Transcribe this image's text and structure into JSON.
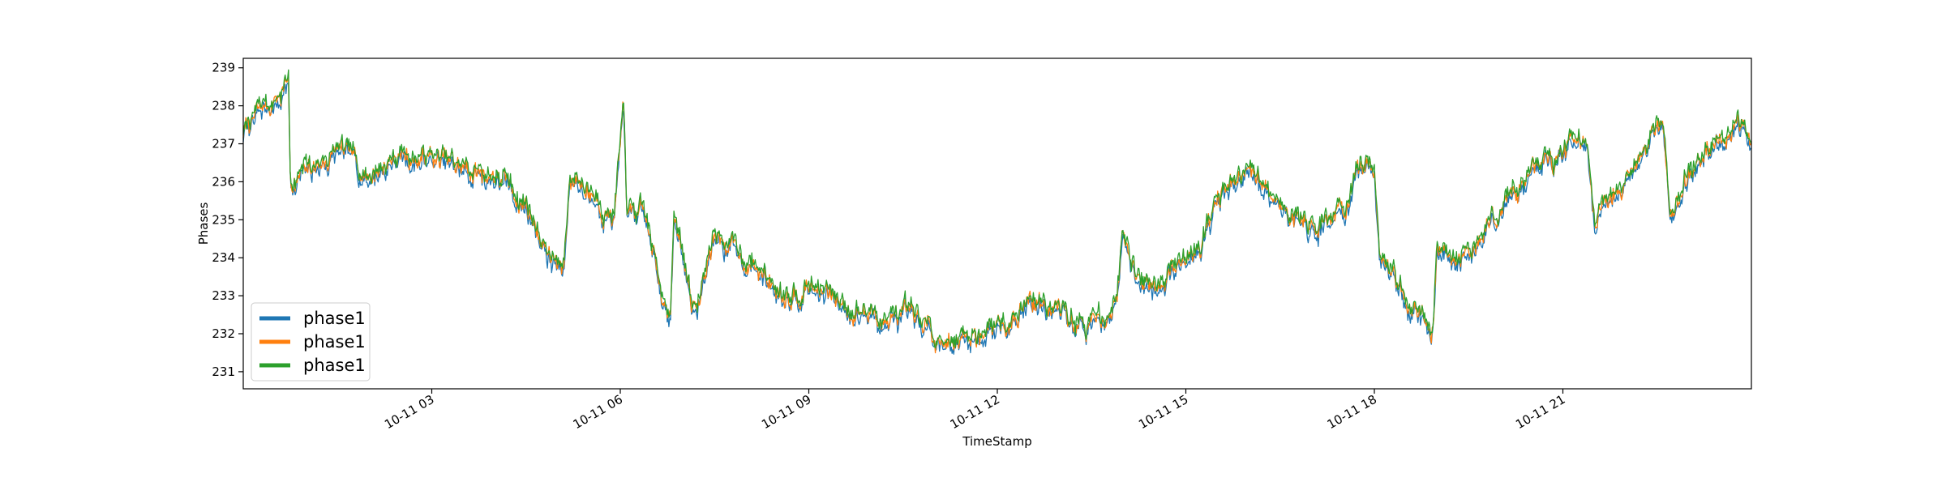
{
  "chart_data": {
    "type": "line",
    "title": "",
    "xlabel": "TimeStamp",
    "ylabel": "Phases",
    "xlim_hours": [
      0,
      24
    ],
    "ylim": [
      230.55,
      239.25
    ],
    "x_ticks": [
      {
        "hour": 3,
        "label": "10-11 03"
      },
      {
        "hour": 6,
        "label": "10-11 06"
      },
      {
        "hour": 9,
        "label": "10-11 09"
      },
      {
        "hour": 12,
        "label": "10-11 12"
      },
      {
        "hour": 15,
        "label": "10-11 15"
      },
      {
        "hour": 18,
        "label": "10-11 18"
      },
      {
        "hour": 21,
        "label": "10-11 21"
      }
    ],
    "y_ticks": [
      231,
      232,
      233,
      234,
      235,
      236,
      237,
      238,
      239
    ],
    "grid": false,
    "legend_position": "lower-left",
    "series": [
      {
        "name": "phase1",
        "color": "#1f77b4",
        "offset": -0.1
      },
      {
        "name": "phase1",
        "color": "#ff7f0e",
        "offset": 0.0
      },
      {
        "name": "phase1",
        "color": "#2ca02c",
        "offset": 0.08
      }
    ],
    "x_hours": [
      0.0,
      0.3,
      0.6,
      0.72,
      0.75,
      1.0,
      1.5,
      2.0,
      2.5,
      3.0,
      3.5,
      4.0,
      4.5,
      4.9,
      5.1,
      5.2,
      5.5,
      5.9,
      6.05,
      6.1,
      6.4,
      6.6,
      6.8,
      6.85,
      7.0,
      7.2,
      7.5,
      8.0,
      8.5,
      9.0,
      9.5,
      10.0,
      10.5,
      11.0,
      11.5,
      12.0,
      12.5,
      13.0,
      13.5,
      13.9,
      14.0,
      14.3,
      14.5,
      15.0,
      15.5,
      16.0,
      16.5,
      17.0,
      17.5,
      18.0,
      18.1,
      18.5,
      18.8,
      18.9,
      19.0,
      19.5,
      20.0,
      20.3,
      20.5,
      21.0,
      21.4,
      21.5,
      22.0,
      22.5,
      22.6,
      22.7,
      23.0,
      23.5,
      24.0
    ],
    "y_values": [
      237.3,
      237.9,
      238.3,
      238.7,
      236.0,
      236.2,
      236.8,
      236.2,
      236.7,
      236.6,
      236.3,
      236.2,
      235.4,
      234.0,
      233.6,
      236.2,
      235.8,
      235.2,
      237.8,
      235.2,
      235.0,
      233.5,
      232.6,
      235.0,
      234.0,
      232.5,
      234.6,
      234.0,
      233.2,
      233.3,
      232.8,
      232.5,
      232.3,
      232.0,
      231.8,
      232.3,
      233.0,
      232.5,
      232.2,
      232.8,
      234.8,
      233.3,
      233.5,
      233.9,
      235.5,
      236.1,
      235.5,
      234.8,
      235.3,
      236.5,
      234.0,
      233.0,
      232.4,
      231.8,
      234.2,
      234.1,
      235.3,
      236.0,
      236.3,
      236.8,
      237.3,
      235.0,
      236.0,
      237.3,
      237.6,
      235.4,
      236.2,
      237.4,
      237.2
    ]
  }
}
